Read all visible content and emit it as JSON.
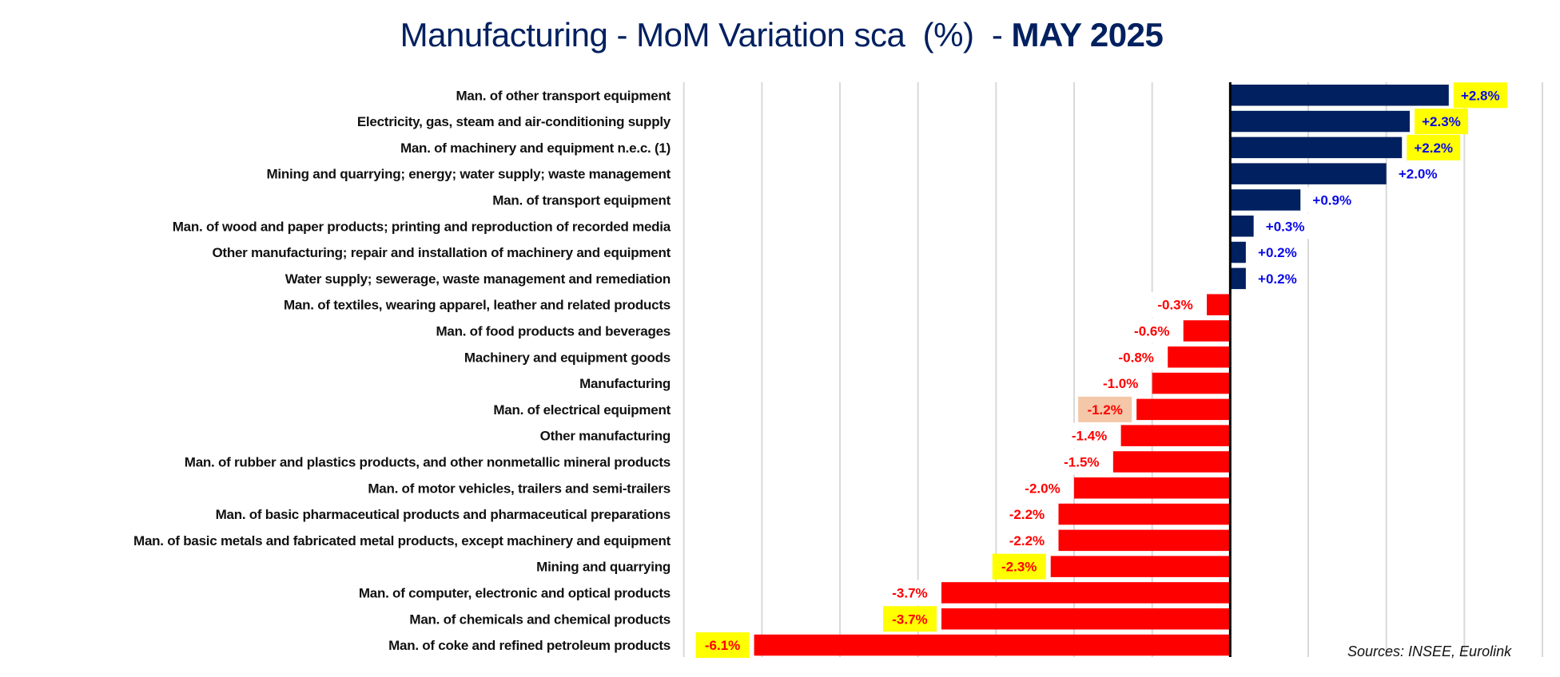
{
  "chart_data": {
    "type": "bar",
    "orientation": "horizontal",
    "title": "Manufacturing - MoM Variation sca  (%)  - ",
    "title_bold": "MAY 2025",
    "xlabel": "",
    "ylabel": "",
    "xlim": [
      -7,
      4
    ],
    "x_gridlines_step": 1,
    "grid": true,
    "source": "Sources: INSEE, Eurolink",
    "colors": {
      "positive_bar": "#002060",
      "negative_bar": "#FF0000",
      "positive_label": "#0A0AE6",
      "negative_label": "#FF0000",
      "title": "#002060",
      "gridline": "#D9D9D9",
      "axis": "#000000",
      "highlight_yellow": "#FFFF00",
      "highlight_peach": "#F4C7A8"
    },
    "categories": [
      "Man. of other transport equipment",
      "Electricity, gas, steam and air-conditioning supply",
      "Man. of machinery and equipment n.e.c. (1)",
      "Mining and quarrying; energy; water supply; waste management",
      "Man. of transport equipment",
      "Man. of wood and paper products; printing and reproduction of recorded media",
      "Other manufacturing; repair and installation of machinery and equipment",
      "Water supply; sewerage, waste management and remediation",
      "Man. of textiles, wearing apparel, leather and related products",
      "Man. of food products and beverages",
      "Machinery and equipment goods",
      "Manufacturing",
      "Man. of electrical equipment",
      "Other manufacturing",
      "Man. of rubber and plastics products, and other nonmetallic mineral products",
      "Man. of motor vehicles, trailers and semi-trailers",
      "Man. of basic pharmaceutical products and pharmaceutical preparations",
      "Man. of basic metals and fabricated metal products, except machinery and equipment",
      "Mining and quarrying",
      "Man. of computer, electronic and optical products",
      "Man. of chemicals and chemical products",
      "Man. of coke and refined petroleum products"
    ],
    "values": [
      2.8,
      2.3,
      2.2,
      2.0,
      0.9,
      0.3,
      0.2,
      0.2,
      -0.3,
      -0.6,
      -0.8,
      -1.0,
      -1.2,
      -1.4,
      -1.5,
      -2.0,
      -2.2,
      -2.2,
      -2.3,
      -3.7,
      -3.7,
      -6.1
    ],
    "value_labels": [
      "+2.8%",
      "+2.3%",
      "+2.2%",
      "+2.0%",
      "+0.9%",
      "+0.3%",
      "+0.2%",
      "+0.2%",
      "-0.3%",
      "-0.6%",
      "-0.8%",
      "-1.0%",
      "-1.2%",
      "-1.4%",
      "-1.5%",
      "-2.0%",
      "-2.2%",
      "-2.2%",
      "-2.3%",
      "-3.7%",
      "-3.7%",
      "-6.1%"
    ],
    "label_highlights": [
      "yellow",
      "yellow",
      "yellow",
      "none",
      "none",
      "none",
      "none",
      "none",
      "none",
      "none",
      "none",
      "none",
      "peach",
      "none",
      "none",
      "none",
      "none",
      "none",
      "yellow",
      "none",
      "yellow",
      "yellow"
    ]
  }
}
